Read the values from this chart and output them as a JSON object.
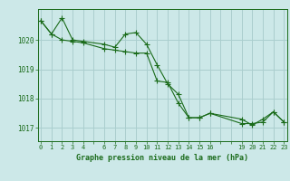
{
  "line1_x": [
    0,
    1,
    2,
    3,
    4,
    6,
    7,
    8,
    9,
    10,
    11,
    12,
    13,
    14,
    15,
    16,
    19,
    20,
    21,
    22,
    23
  ],
  "line1_y": [
    1020.65,
    1020.2,
    1020.75,
    1020.0,
    1019.95,
    1019.85,
    1019.75,
    1020.2,
    1020.25,
    1019.85,
    1019.15,
    1018.5,
    1018.15,
    1017.35,
    1017.35,
    1017.5,
    1017.15,
    1017.15,
    1017.2,
    1017.55,
    1017.2
  ],
  "line2_x": [
    0,
    1,
    2,
    3,
    4,
    6,
    7,
    8,
    9,
    10,
    11,
    12,
    13,
    14,
    15,
    16,
    19,
    20,
    21,
    22,
    23
  ],
  "line2_y": [
    1020.65,
    1020.2,
    1020.0,
    1019.95,
    1019.9,
    1019.7,
    1019.65,
    1019.6,
    1019.55,
    1019.55,
    1018.6,
    1018.55,
    1017.85,
    1017.35,
    1017.35,
    1017.5,
    1017.3,
    1017.1,
    1017.3,
    1017.55,
    1017.2
  ],
  "line_color": "#1a6b1a",
  "marker_size": 2.5,
  "background_color": "#cce8e8",
  "grid_color": "#aacece",
  "xlabel": "Graphe pression niveau de la mer (hPa)",
  "xtick_labels": [
    "0",
    "1",
    "2",
    "3",
    "4",
    "",
    "6",
    "7",
    "8",
    "9",
    "10",
    "11",
    "12",
    "13",
    "14",
    "15",
    "16",
    "",
    "",
    "19",
    "20",
    "21",
    "22",
    "23"
  ],
  "xtick_positions": [
    0,
    1,
    2,
    3,
    4,
    5,
    6,
    7,
    8,
    9,
    10,
    11,
    12,
    13,
    14,
    15,
    16,
    17,
    18,
    19,
    20,
    21,
    22,
    23
  ],
  "ylim": [
    1016.55,
    1021.05
  ],
  "xlim": [
    -0.3,
    23.3
  ],
  "ytick_positions": [
    1017,
    1018,
    1019,
    1020
  ],
  "ytick_labels": [
    "1017",
    "1018",
    "1019",
    "1020"
  ]
}
